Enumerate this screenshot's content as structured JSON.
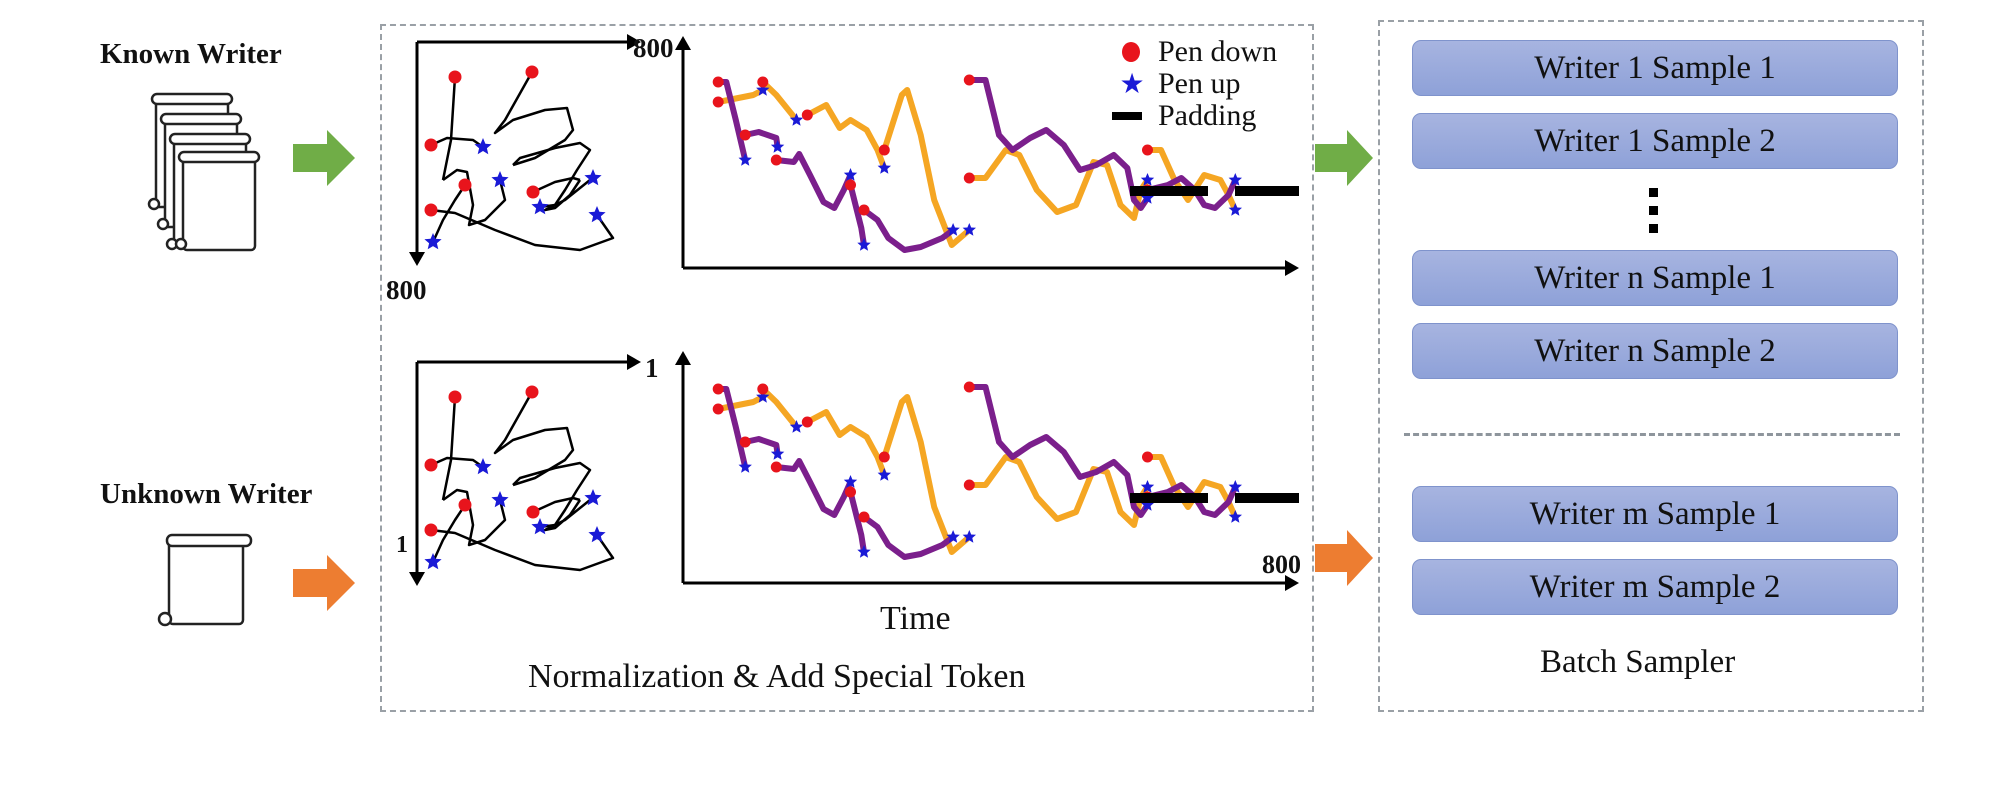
{
  "inputs": {
    "known_writer": {
      "label": "Known Writer",
      "icon": "stacked-scrolls-icon",
      "arrow_color": "#70ad47"
    },
    "unknown_writer": {
      "label": "Unknown Writer",
      "icon": "scroll-icon",
      "arrow_color": "#ed7d31"
    }
  },
  "normalization": {
    "caption": "Normalization & Add Special Token",
    "top_trajectory": {
      "x_axis_max": "800",
      "y_axis_max": "800"
    },
    "bottom_trajectory": {
      "x_axis_max": "1",
      "y_axis_max": "1"
    },
    "time_axis_label": "Time",
    "time_axis_max": "800",
    "legend": [
      {
        "label": "Pen down",
        "symbol": "red-dot",
        "color": "#e8141c"
      },
      {
        "label": "Pen up",
        "symbol": "blue-star",
        "color": "#1a1ad6"
      },
      {
        "label": "Padding",
        "symbol": "black-dash",
        "color": "#000000"
      }
    ],
    "series_colors": {
      "x_series": "#f5a623",
      "y_series": "#7b1f8c"
    }
  },
  "batch_sampler": {
    "caption": "Batch Sampler",
    "known_group": [
      "Writer 1 Sample 1",
      "Writer 1 Sample 2",
      "Writer n Sample 1",
      "Writer n Sample 2"
    ],
    "ellipsis": "⋮",
    "unknown_group": [
      "Writer m Sample 1",
      "Writer m Sample 2"
    ]
  }
}
